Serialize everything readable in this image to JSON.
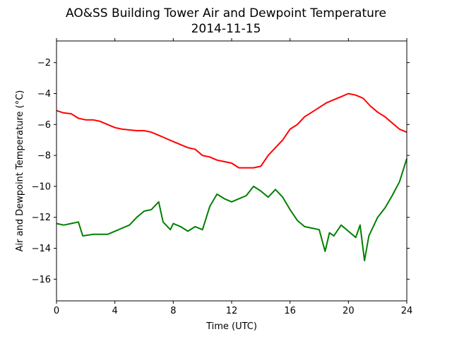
{
  "chart_data": {
    "type": "line",
    "title": "AO&SS Building Tower Air and Dewpoint Temperature",
    "subtitle": "2014-11-15",
    "xlabel": "Time (UTC)",
    "ylabel": "Air and Dewpoint Temperature (°C)",
    "xlim": [
      0,
      24
    ],
    "ylim": [
      -17.4,
      -0.6
    ],
    "xticks": [
      0,
      4,
      8,
      12,
      16,
      20,
      24
    ],
    "yticks": [
      -16,
      -14,
      -12,
      -10,
      -8,
      -6,
      -4,
      -2
    ],
    "grid": false,
    "legend": "none",
    "series": [
      {
        "color": "#ff0000",
        "x": [
          0,
          0.5,
          1.0,
          1.5,
          2.0,
          2.5,
          3.0,
          3.5,
          4.0,
          4.5,
          5.0,
          5.5,
          6.0,
          6.5,
          7.0,
          7.5,
          8.0,
          8.5,
          9.0,
          9.5,
          10.0,
          10.5,
          11.0,
          11.5,
          12.0,
          12.5,
          13.0,
          13.5,
          14.0,
          14.5,
          15.0,
          15.5,
          16.0,
          16.5,
          17.0,
          17.5,
          18.0,
          18.5,
          19.0,
          19.5,
          20.0,
          20.5,
          21.0,
          21.5,
          22.0,
          22.5,
          23.0,
          23.5,
          24.0
        ],
        "values": [
          -5.1,
          -5.25,
          -5.3,
          -5.6,
          -5.7,
          -5.7,
          -5.8,
          -6.0,
          -6.2,
          -6.3,
          -6.35,
          -6.4,
          -6.4,
          -6.5,
          -6.7,
          -6.9,
          -7.1,
          -7.3,
          -7.5,
          -7.6,
          -8.0,
          -8.1,
          -8.3,
          -8.4,
          -8.5,
          -8.8,
          -8.8,
          -8.8,
          -8.7,
          -8.0,
          -7.5,
          -7.0,
          -6.3,
          -6.0,
          -5.5,
          -5.2,
          -4.9,
          -4.6,
          -4.4,
          -4.2,
          -4.0,
          -4.1,
          -4.3,
          -4.8,
          -5.2,
          -5.5,
          -5.9,
          -6.3,
          -6.5
        ]
      },
      {
        "color": "#008000",
        "x": [
          0,
          0.5,
          1.0,
          1.5,
          1.8,
          2.5,
          3.0,
          3.5,
          4.0,
          4.5,
          5.0,
          5.5,
          6.0,
          6.5,
          7.0,
          7.3,
          7.8,
          8.0,
          8.5,
          9.0,
          9.5,
          10.0,
          10.5,
          11.0,
          11.5,
          12.0,
          12.5,
          13.0,
          13.5,
          14.0,
          14.5,
          15.0,
          15.5,
          16.0,
          16.5,
          17.0,
          17.5,
          18.0,
          18.4,
          18.7,
          19.0,
          19.5,
          20.0,
          20.5,
          20.8,
          21.1,
          21.4,
          21.7,
          22.0,
          22.5,
          23.0,
          23.5,
          24.0
        ],
        "values": [
          -12.4,
          -12.5,
          -12.4,
          -12.3,
          -13.2,
          -13.1,
          -13.1,
          -13.1,
          -12.9,
          -12.7,
          -12.5,
          -12.0,
          -11.6,
          -11.5,
          -11.0,
          -12.3,
          -12.8,
          -12.4,
          -12.6,
          -12.9,
          -12.6,
          -12.8,
          -11.3,
          -10.5,
          -10.8,
          -11.0,
          -10.8,
          -10.6,
          -10.0,
          -10.3,
          -10.7,
          -10.2,
          -10.7,
          -11.5,
          -12.2,
          -12.6,
          -12.7,
          -12.8,
          -14.2,
          -13.0,
          -13.2,
          -12.5,
          -12.9,
          -13.3,
          -12.5,
          -14.8,
          -13.2,
          -12.6,
          -12.0,
          -11.4,
          -10.6,
          -9.7,
          -8.2
        ]
      }
    ]
  }
}
